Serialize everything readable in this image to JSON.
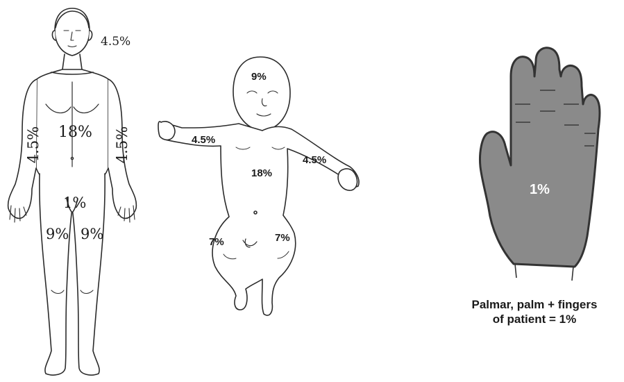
{
  "adult": {
    "head": "4.5%",
    "left_arm": "4.5%",
    "right_arm": "4.5%",
    "trunk": "18%",
    "genitals": "1%",
    "left_leg": "9%",
    "right_leg": "9%"
  },
  "infant": {
    "head": "9%",
    "left_arm": "4.5%",
    "right_arm": "4.5%",
    "trunk": "18%",
    "left_leg": "7%",
    "right_leg": "7%"
  },
  "palm": {
    "value": "1%",
    "caption_line1": "Palmar, palm + fingers",
    "caption_line2": "of patient = 1%"
  },
  "colors": {
    "outline": "#2b2b2b",
    "hand_fill": "#8a8a8a",
    "hand_text": "#ffffff"
  }
}
